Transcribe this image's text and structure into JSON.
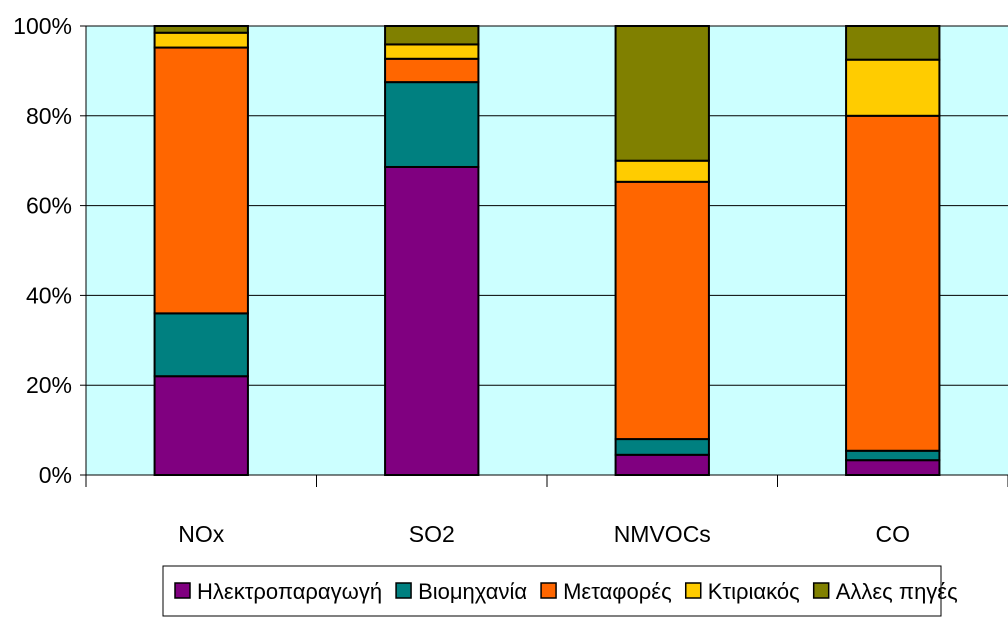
{
  "chart_data": {
    "type": "bar",
    "stacked": true,
    "percent": true,
    "categories": [
      "NOx",
      "SO2",
      "NMVOCs",
      "CO"
    ],
    "series": [
      {
        "name": "Ηλεκτροπαραγωγή",
        "color": "#800080",
        "values": [
          22,
          68.6,
          4.5,
          3.3
        ]
      },
      {
        "name": "Βιομηχανία",
        "color": "#008080",
        "values": [
          14,
          18.9,
          3.5,
          2.1
        ]
      },
      {
        "name": "Μεταφορές",
        "color": "#FF6600",
        "values": [
          59.2,
          5.2,
          57.3,
          74.6
        ]
      },
      {
        "name": "Κτιριακός",
        "color": "#FFCC00",
        "values": [
          3.3,
          3.2,
          4.7,
          12.5
        ]
      },
      {
        "name": "Αλλες πηγές",
        "color": "#808000",
        "values": [
          1.5,
          4.1,
          30,
          7.5
        ]
      }
    ],
    "ylim": [
      0,
      100
    ],
    "yticks": [
      "0%",
      "20%",
      "40%",
      "60%",
      "80%",
      "100%"
    ],
    "grid": true,
    "plot_background": "#CCFFFF",
    "legend_position": "bottom"
  }
}
